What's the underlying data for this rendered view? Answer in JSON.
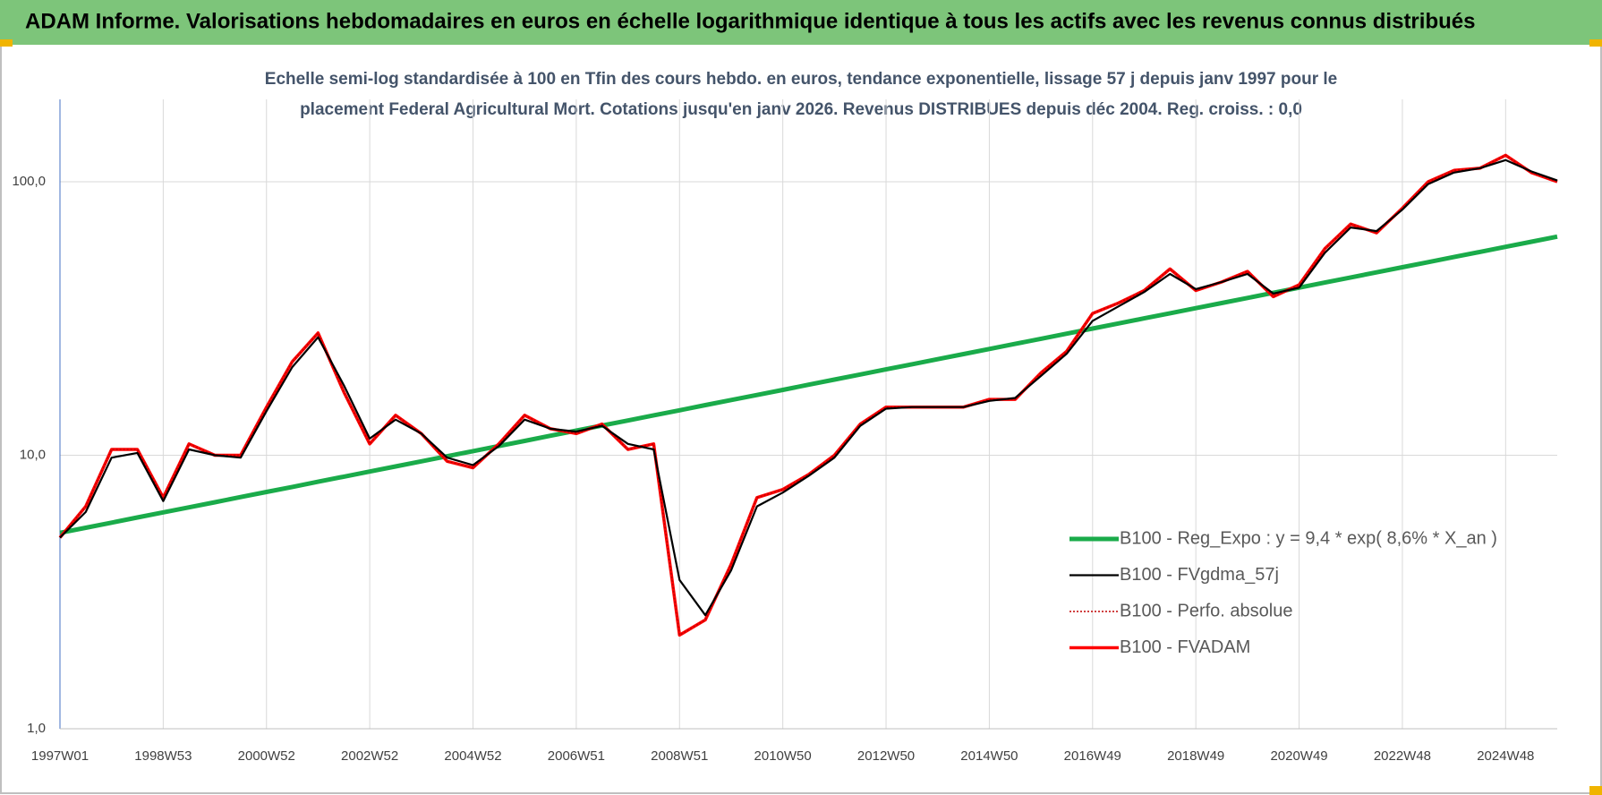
{
  "header": {
    "title": "ADAM Informe. Valorisations hebdomadaires en euros en échelle logarithmique identique à tous les actifs avec les revenus connus distribués"
  },
  "chart_data": {
    "type": "line",
    "subtitle": [
      "Echelle semi-log standardisée à 100 en Tfin des cours hebdo. en euros, tendance exponentielle, lissage 57 j depuis janv 1997 pour le",
      "placement Federal Agricultural Mort. Cotations jusqu'en janv 2026. Revenus DISTRIBUES depuis déc 2004. Reg. croiss. : 0,0"
    ],
    "log_scale": true,
    "grid": true,
    "ylim": [
      1,
      200
    ],
    "yticks": [
      {
        "value": 1,
        "label": "1,0"
      },
      {
        "value": 10,
        "label": "10,0"
      },
      {
        "value": 100,
        "label": "100,0"
      }
    ],
    "categories": [
      "1997W01",
      null,
      null,
      null,
      "1998W53",
      null,
      null,
      null,
      "2000W52",
      null,
      null,
      null,
      "2002W52",
      null,
      null,
      null,
      "2004W52",
      null,
      null,
      null,
      "2006W51",
      null,
      null,
      null,
      "2008W51",
      null,
      null,
      null,
      "2010W50",
      null,
      null,
      null,
      "2012W50",
      null,
      null,
      null,
      "2014W50",
      null,
      null,
      null,
      "2016W49",
      null,
      null,
      null,
      "2018W49",
      null,
      null,
      null,
      "2020W49",
      null,
      null,
      null,
      "2022W48",
      null,
      null,
      null,
      "2024W48",
      null,
      null
    ],
    "series": [
      {
        "name": "B100 - Reg_Expo : y = 9,4 * exp( 8,6% *  X_an )",
        "color": "#1aab4a",
        "style": "solid",
        "values": [
          5.2,
          5.43,
          5.67,
          5.92,
          6.18,
          6.45,
          6.73,
          7.03,
          7.34,
          7.66,
          8.0,
          8.35,
          8.72,
          9.1,
          9.5,
          9.92,
          10.35,
          10.81,
          11.28,
          11.78,
          12.3,
          12.84,
          13.4,
          13.99,
          14.6,
          15.25,
          15.92,
          16.61,
          17.34,
          18.11,
          18.9,
          19.73,
          20.6,
          21.5,
          22.45,
          23.43,
          24.46,
          25.54,
          26.66,
          27.83,
          29.05,
          30.33,
          31.66,
          33.05,
          34.5,
          36.02,
          37.6,
          39.25,
          40.98,
          42.78,
          44.66,
          46.62,
          48.67,
          50.81,
          53.04,
          55.37,
          57.8,
          60.34,
          62.99
        ]
      },
      {
        "name": "B100 - FVgdma_57j",
        "color": "#000000",
        "style": "solid",
        "values": [
          5.0,
          6.2,
          9.8,
          10.2,
          6.8,
          10.5,
          10.0,
          9.8,
          14.5,
          21,
          27,
          18,
          11.5,
          13.5,
          12,
          9.8,
          9.2,
          10.8,
          13.5,
          12.5,
          12.2,
          12.8,
          11,
          10.5,
          3.5,
          2.6,
          3.8,
          6.5,
          7.3,
          8.4,
          9.8,
          12.8,
          14.8,
          15,
          15,
          15,
          15.8,
          16.2,
          19.5,
          23.5,
          31,
          35,
          39.5,
          46,
          40.5,
          43,
          46,
          39,
          41,
          55,
          68,
          66,
          79,
          98,
          108,
          112,
          120,
          109,
          101
        ]
      },
      {
        "name": "B100 - Perfo. absolue",
        "color": "#c00000",
        "style": "dotted",
        "values": [
          5.0,
          6.5,
          10.5,
          10.5,
          7.0,
          11,
          10,
          10,
          15,
          22,
          28,
          17,
          11,
          14,
          12,
          9.5,
          9,
          11,
          14,
          12.5,
          12,
          13,
          10.5,
          11,
          2.2,
          2.5,
          4,
          7,
          7.5,
          8.5,
          10,
          13,
          15,
          15,
          15,
          15,
          16,
          16,
          20,
          24,
          33,
          36,
          40,
          48,
          40,
          43,
          47,
          38,
          42,
          57,
          70,
          65,
          80,
          100,
          110,
          112,
          125,
          108,
          100
        ]
      },
      {
        "name": "B100 - FVADAM",
        "color": "#ff0000",
        "style": "solid",
        "values": [
          5.0,
          6.5,
          10.5,
          10.5,
          7.0,
          11,
          10,
          10,
          15,
          22,
          28,
          17,
          11,
          14,
          12,
          9.5,
          9,
          11,
          14,
          12.5,
          12,
          13,
          10.5,
          11,
          2.2,
          2.5,
          4,
          7,
          7.5,
          8.5,
          10,
          13,
          15,
          15,
          15,
          15,
          16,
          16,
          20,
          24,
          33,
          36,
          40,
          48,
          40,
          43,
          47,
          38,
          42,
          57,
          70,
          65,
          80,
          100,
          110,
          112,
          125,
          108,
          100
        ]
      }
    ]
  }
}
